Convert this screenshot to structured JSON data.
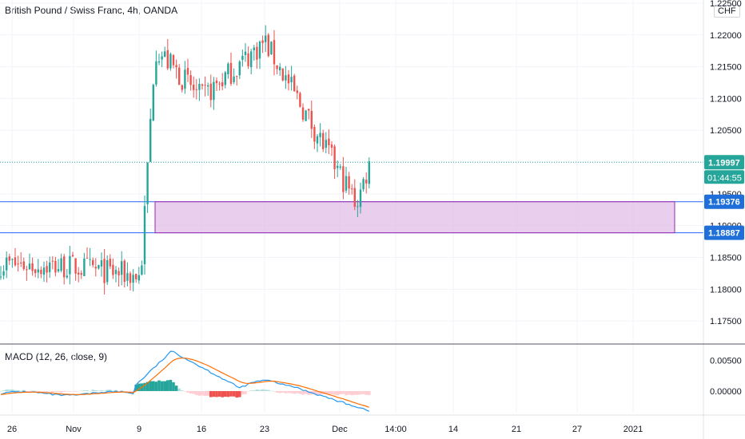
{
  "header": {
    "title": "British Pound / Swiss Franc, 4h, OANDA",
    "currency": "CHF"
  },
  "macd_indicator": {
    "label": "MACD (12, 26, close, 9)"
  },
  "colors": {
    "up": "#26a69a",
    "down": "#ef5350",
    "zone_fill": "#e1bee7",
    "zone_border": "#9c27b0",
    "line_blue": "#2962ff",
    "macd_line": "#2196f3",
    "signal_line": "#ff6d00",
    "label_bg": "#1e6fd9",
    "current_bg": "#26a69a"
  },
  "price_labels": {
    "current": "1.19997",
    "countdown": "01:44:55",
    "zone_top": "1.19376",
    "zone_bottom": "1.18887"
  },
  "chart_data": [
    {
      "type": "candlestick",
      "title": "British Pound / Swiss Franc, 4h, OANDA",
      "x_ticks": [
        "26",
        "Nov",
        "9",
        "16",
        "23",
        "Dec",
        "14:00",
        "14",
        "21",
        "27",
        "2021"
      ],
      "y_ticks": [
        "1.17500",
        "1.18000",
        "1.18500",
        "1.19000",
        "1.19500",
        "1.20000",
        "1.20500",
        "1.21000",
        "1.21500",
        "1.22000",
        "1.22500"
      ],
      "ylim": [
        1.1715,
        1.2255
      ],
      "current_price": 1.19997,
      "zones": [
        {
          "top": 1.19376,
          "bottom": 1.18887,
          "from_date": "9",
          "to": "2021"
        }
      ],
      "trend": [
        {
          "x": "26",
          "price": 1.184
        },
        {
          "x": "Nov",
          "price": 1.1835
        },
        {
          "x": "9",
          "price": 1.182
        },
        {
          "x": "9",
          "price": 1.218
        },
        {
          "x": "16",
          "price": 1.21
        },
        {
          "x": "23",
          "price": 1.219
        },
        {
          "x": "Dec",
          "price": 1.1935
        },
        {
          "x": "Dec",
          "price": 1.2
        }
      ]
    },
    {
      "type": "line",
      "title": "MACD (12, 26, close, 9)",
      "y_ticks": [
        "0.00000",
        "0.00500"
      ],
      "ylim": [
        -0.0035,
        0.0075
      ]
    }
  ]
}
